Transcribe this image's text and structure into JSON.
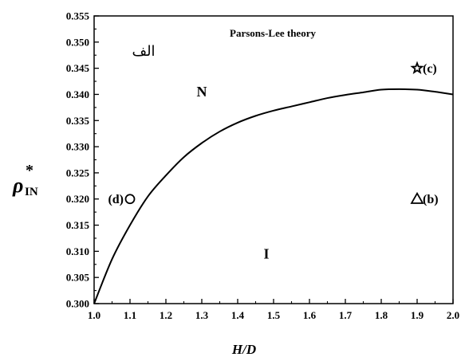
{
  "chart_data": {
    "type": "line",
    "title": "Parsons-Lee theory",
    "panel_label": "الف",
    "xlabel": "H/D",
    "ylabel": {
      "main": "ρ",
      "superscript": "*",
      "subscript": "IN"
    },
    "xlim": [
      1.0,
      2.0
    ],
    "ylim": [
      0.3,
      0.355
    ],
    "x_ticks": [
      "1.0",
      "1.1",
      "1.2",
      "1.3",
      "1.4",
      "1.5",
      "1.6",
      "1.7",
      "1.8",
      "1.9",
      "2.0"
    ],
    "y_ticks": [
      "0.300",
      "0.305",
      "0.310",
      "0.315",
      "0.320",
      "0.325",
      "0.330",
      "0.335",
      "0.340",
      "0.345",
      "0.350",
      "0.355"
    ],
    "grid": false,
    "series": [
      {
        "x": [
          1.0,
          1.05,
          1.1,
          1.15,
          1.2,
          1.25,
          1.3,
          1.35,
          1.4,
          1.45,
          1.5,
          1.55,
          1.6,
          1.65,
          1.7,
          1.75,
          1.8,
          1.85,
          1.9,
          1.95,
          2.0
        ],
        "y": [
          0.3,
          0.3085,
          0.315,
          0.3205,
          0.3245,
          0.328,
          0.3307,
          0.3329,
          0.3346,
          0.3359,
          0.3369,
          0.3377,
          0.3385,
          0.3393,
          0.3399,
          0.3404,
          0.3409,
          0.341,
          0.3409,
          0.3405,
          0.34
        ]
      }
    ],
    "phase_labels": [
      {
        "text": "N",
        "x": 1.3,
        "y": 0.3405
      },
      {
        "text": "I",
        "x": 1.48,
        "y": 0.3095
      }
    ],
    "points": [
      {
        "label": "(c)",
        "marker": "star",
        "x": 1.9,
        "y": 0.345
      },
      {
        "label": "(b)",
        "marker": "triangle",
        "x": 1.9,
        "y": 0.32
      },
      {
        "label": "(d)",
        "marker": "circle",
        "x": 1.1,
        "y": 0.32
      }
    ]
  }
}
